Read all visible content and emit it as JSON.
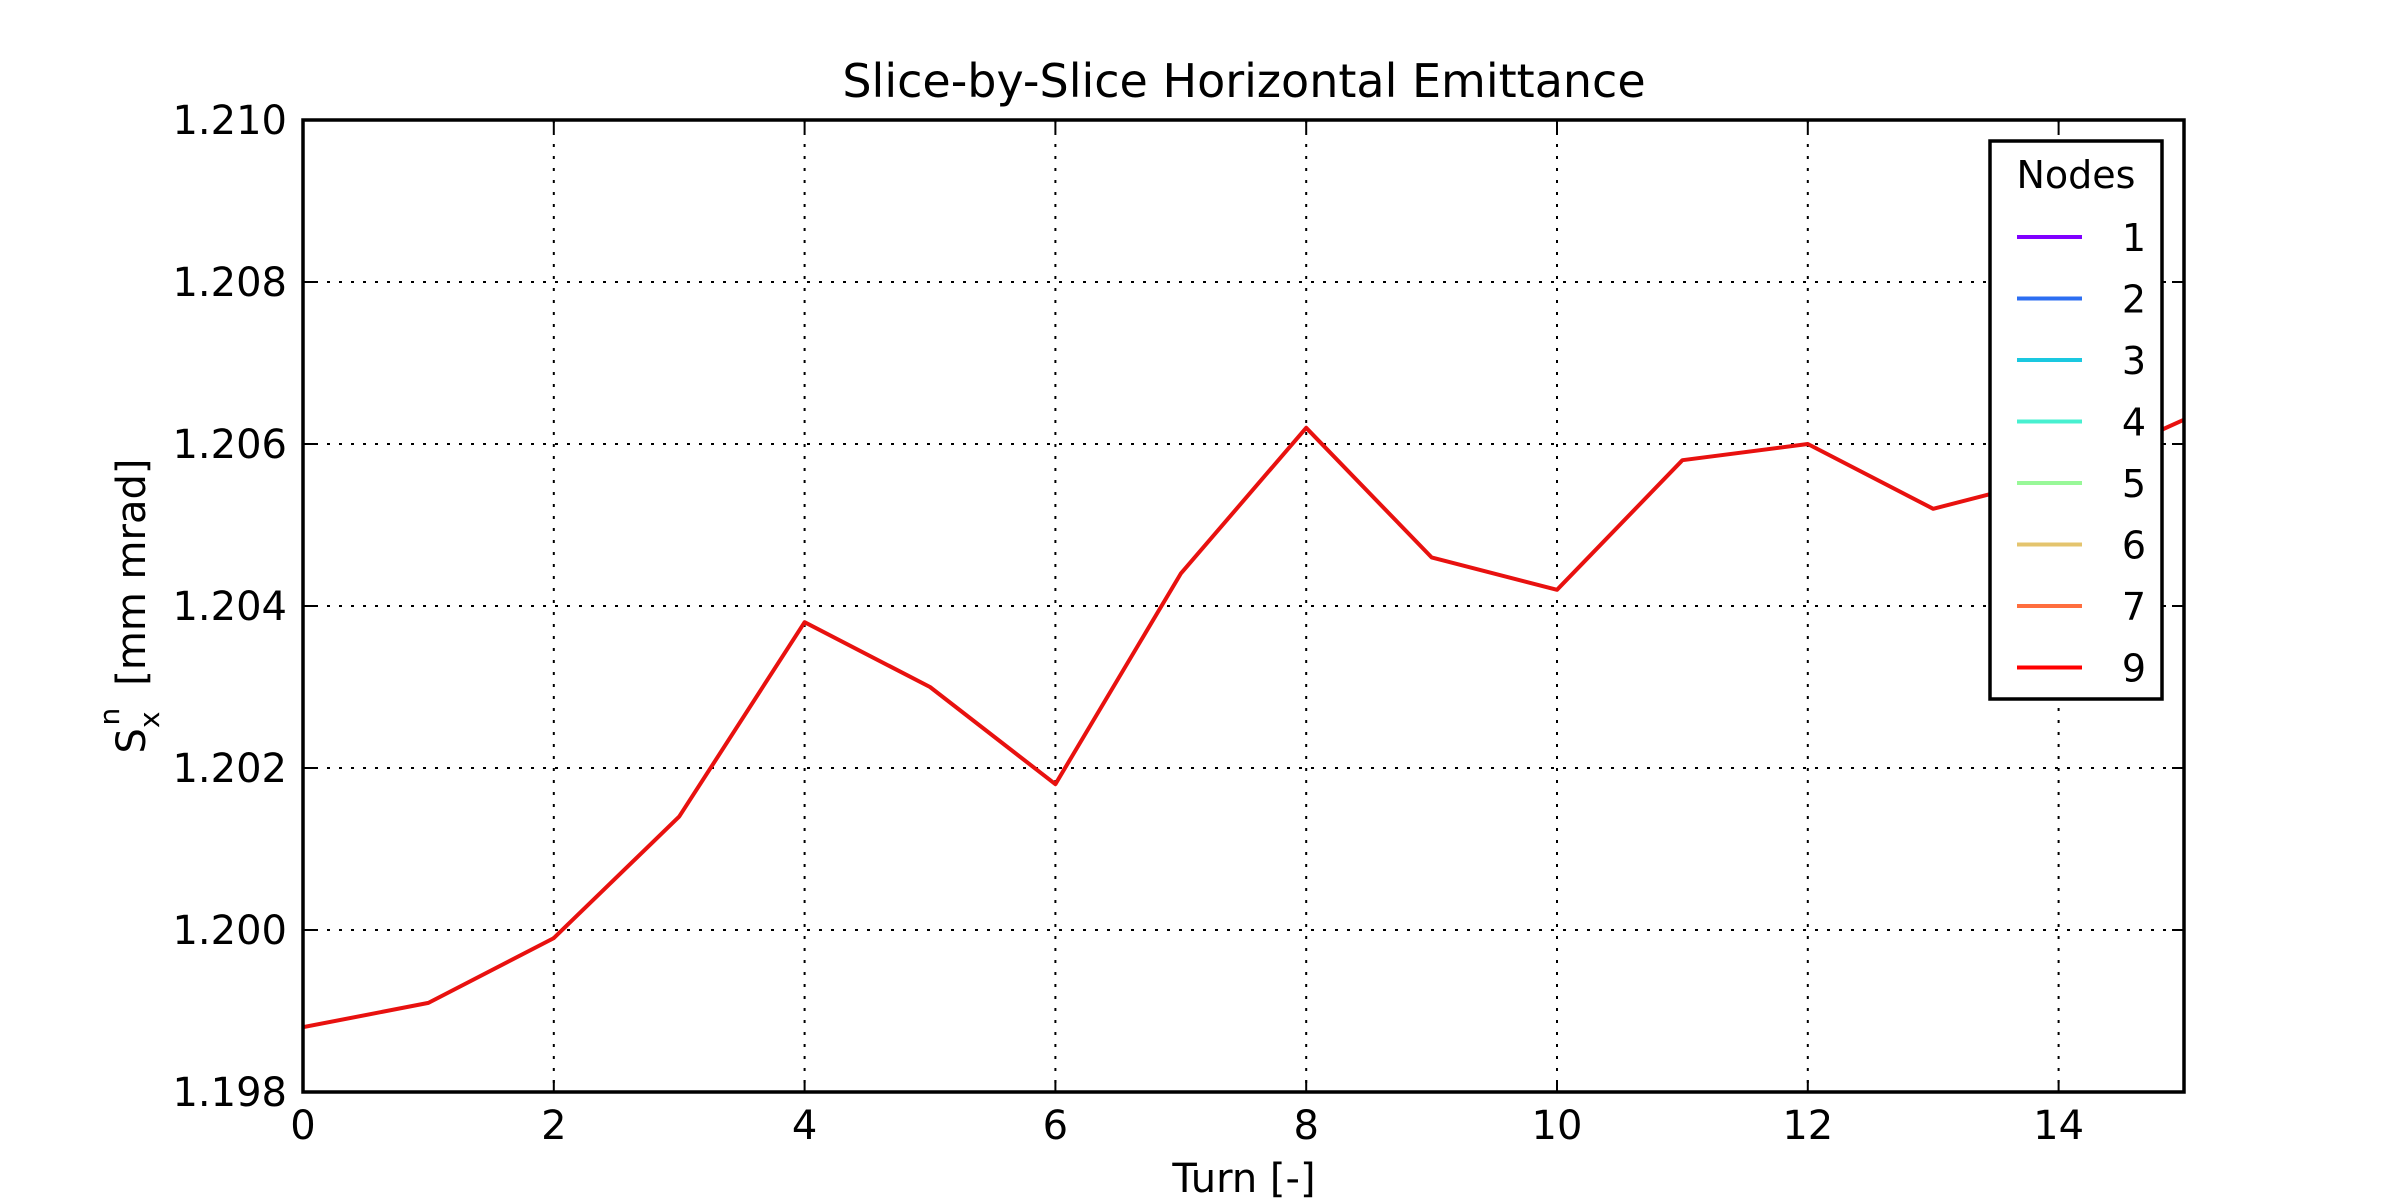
{
  "chart_data": {
    "type": "line",
    "title": "Slice-by-Slice Horizontal Emittance",
    "xlabel": "Turn [-]",
    "ylabel": {
      "symbol": "S",
      "sub": "x",
      "sup": "n",
      "units": "[mm mrad]"
    },
    "xlim": [
      0,
      15
    ],
    "ylim": [
      1.198,
      1.21
    ],
    "xticks": [
      0,
      2,
      4,
      6,
      8,
      10,
      12,
      14
    ],
    "xtick_labels": [
      "0",
      "2",
      "4",
      "6",
      "8",
      "10",
      "12",
      "14"
    ],
    "yticks": [
      1.198,
      1.2,
      1.202,
      1.204,
      1.206,
      1.208,
      1.21
    ],
    "ytick_labels": [
      "1.198",
      "1.200",
      "1.202",
      "1.204",
      "1.206",
      "1.208",
      "1.210"
    ],
    "grid": true,
    "legend": {
      "title": "Nodes",
      "placement": "top-right",
      "entries": [
        {
          "label": "1",
          "color": "#8000ff"
        },
        {
          "label": "2",
          "color": "#2c6ef2"
        },
        {
          "label": "3",
          "color": "#1ac8e0"
        },
        {
          "label": "4",
          "color": "#48f0d0"
        },
        {
          "label": "5",
          "color": "#98f898"
        },
        {
          "label": "6",
          "color": "#e4c46e"
        },
        {
          "label": "7",
          "color": "#ff6e3e"
        },
        {
          "label": "9",
          "color": "#ff0000"
        }
      ]
    },
    "series": [
      {
        "name": "9",
        "color": "#e8110f",
        "x": [
          0,
          1,
          2,
          3,
          4,
          5,
          6,
          7,
          8,
          9,
          10,
          11,
          12,
          13,
          14,
          15
        ],
        "y": [
          1.1988,
          1.1991,
          1.1999,
          1.2014,
          1.2038,
          1.203,
          1.2018,
          1.2044,
          1.2062,
          1.2046,
          1.2042,
          1.2058,
          1.206,
          1.2052,
          1.2056,
          1.2063
        ]
      }
    ]
  }
}
